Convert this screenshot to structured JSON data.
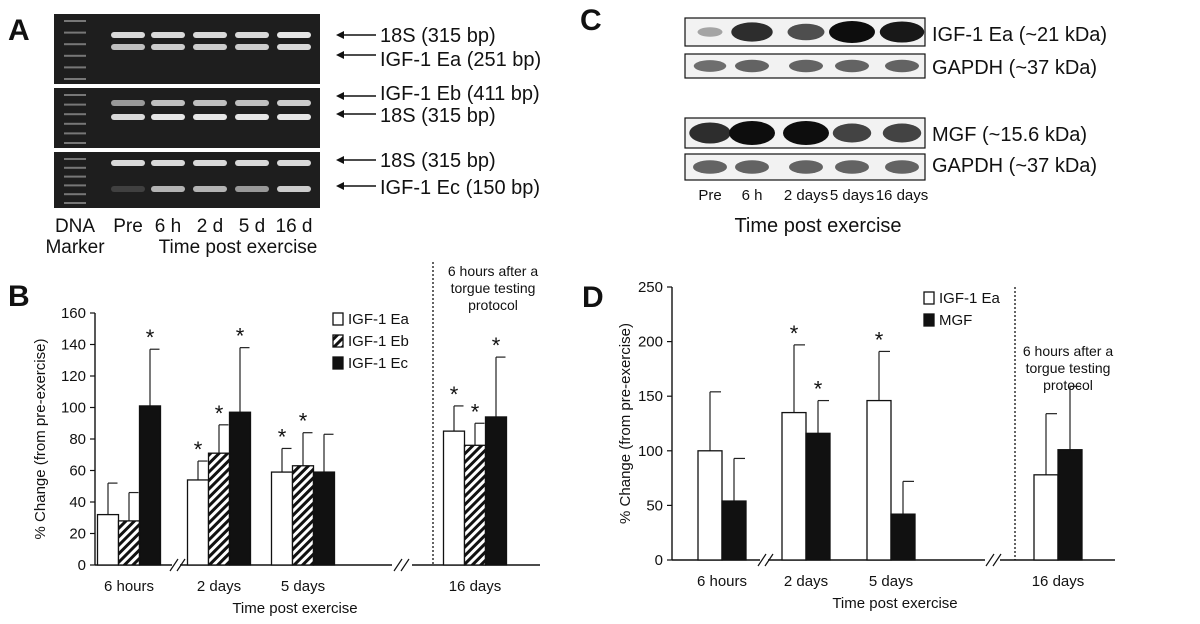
{
  "panel_labels": {
    "a": "A",
    "b": "B",
    "c": "C",
    "d": "D"
  },
  "panel_a": {
    "band_labels": [
      "18S (315 bp)",
      "IGF-1 Ea (251 bp)",
      "IGF-1 Eb (411 bp)",
      "18S (315 bp)",
      "18S (315 bp)",
      "IGF-1 Ec (150 bp)"
    ],
    "lane_labels": [
      "Pre",
      "6 h",
      "2 d",
      "5 d",
      "16 d"
    ],
    "marker_label_line1": "DNA",
    "marker_label_line2": "Marker",
    "axis_label": "Time post exercise",
    "gel_rows": [
      {
        "bands": [
          [
            0.85,
            0.85,
            0.85,
            0.85,
            0.9
          ],
          [
            0.75,
            0.8,
            0.8,
            0.8,
            0.85
          ]
        ]
      },
      {
        "bands": [
          [
            0.6,
            0.75,
            0.75,
            0.75,
            0.8
          ],
          [
            0.85,
            0.9,
            0.9,
            0.9,
            0.9
          ]
        ]
      },
      {
        "bands": [
          [
            0.85,
            0.85,
            0.85,
            0.85,
            0.85
          ],
          [
            0.25,
            0.7,
            0.7,
            0.6,
            0.8
          ]
        ]
      }
    ]
  },
  "panel_c": {
    "blot_labels": [
      "IGF-1 Ea (~21 kDa)",
      "GAPDH (~37 kDa)",
      "MGF (~15.6 kDa)",
      "GAPDH (~37 kDa)"
    ],
    "lane_labels": [
      "Pre",
      "6 h",
      "2 days",
      "5 days",
      "16 days"
    ],
    "axis_label": "Time post exercise",
    "blots": [
      {
        "intensity": [
          0.3,
          0.85,
          0.7,
          1.0,
          0.95
        ]
      },
      {
        "intensity": [
          0.55,
          0.6,
          0.6,
          0.6,
          0.6
        ]
      },
      {
        "intensity": [
          0.85,
          1.0,
          1.0,
          0.75,
          0.75
        ]
      },
      {
        "intensity": [
          0.6,
          0.6,
          0.6,
          0.6,
          0.6
        ]
      }
    ]
  },
  "chart_data": [
    {
      "panel": "B",
      "type": "bar",
      "ylabel": "% Change (from pre-exercise)",
      "xlabel": "Time post exercise",
      "ylim": [
        0,
        160
      ],
      "yticks": [
        "0",
        "20",
        "40",
        "60",
        "80",
        "100",
        "120",
        "140",
        "160"
      ],
      "categories": [
        "6 hours",
        "2 days",
        "5 days",
        "16 days"
      ],
      "series": [
        {
          "name": "IGF-1 Ea",
          "fill": "white",
          "values": [
            32,
            54,
            59,
            85
          ],
          "errors": [
            20,
            12,
            15,
            16
          ],
          "significant": [
            false,
            true,
            true,
            true
          ]
        },
        {
          "name": "IGF-1 Eb",
          "fill": "hatched",
          "values": [
            28,
            71,
            63,
            76
          ],
          "errors": [
            18,
            18,
            21,
            14
          ],
          "significant": [
            false,
            true,
            true,
            true
          ]
        },
        {
          "name": "IGF-1 Ec",
          "fill": "black",
          "values": [
            101,
            97,
            59,
            94
          ],
          "errors": [
            36,
            41,
            24,
            38
          ],
          "significant": [
            true,
            true,
            false,
            true
          ]
        }
      ],
      "annotation": [
        "6 hours after a",
        "torgue testing",
        "protocol"
      ],
      "significance_marker": "*",
      "legend_position": "top-right"
    },
    {
      "panel": "D",
      "type": "bar",
      "ylabel": "% Change (from pre-exercise)",
      "xlabel": "Time post exercise",
      "ylim": [
        0,
        250
      ],
      "yticks": [
        "0",
        "50",
        "100",
        "150",
        "200",
        "250"
      ],
      "categories": [
        "6 hours",
        "2 days",
        "5 days",
        "16 days"
      ],
      "series": [
        {
          "name": "IGF-1 Ea",
          "fill": "white",
          "values": [
            100,
            135,
            146,
            78
          ],
          "errors": [
            54,
            62,
            45,
            56
          ],
          "significant": [
            false,
            true,
            true,
            false
          ]
        },
        {
          "name": "MGF",
          "fill": "black",
          "values": [
            54,
            116,
            42,
            101
          ],
          "errors": [
            39,
            30,
            30,
            58
          ],
          "significant": [
            false,
            true,
            false,
            false
          ]
        }
      ],
      "annotation": [
        "6 hours after a",
        "torgue testing",
        "protocol"
      ],
      "significance_marker": "*",
      "legend_position": "top-center"
    }
  ]
}
